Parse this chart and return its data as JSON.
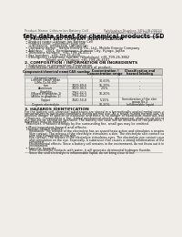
{
  "bg_color": "#f0ede8",
  "title": "Safety data sheet for chemical products (SDS)",
  "header_left": "Product Name: Lithium Ion Battery Cell",
  "header_right": "Publication Number: SDS-LIB-00010\nEstablished / Revision: Dec.7.2010",
  "section1_title": "1. PRODUCT AND COMPANY IDENTIFICATION",
  "section1_lines": [
    " • Product name: Lithium Ion Battery Cell",
    " • Product code: Cylindrical-type cell",
    "    (UR18650U, UR18650A, UR18650A)",
    " • Company name:   Sanyo Electric Co., Ltd., Mobile Energy Company",
    " • Address:   2001  Kamionazuru, Sumoto City, Hyogo, Japan",
    " • Telephone number:  +81-799-26-4111",
    " • Fax number:  +81-799-26-4120",
    " • Emergency telephone number (Weekdays) +81-799-26-3862",
    "                     (Night and holidays) +81-799-26-4101"
  ],
  "section2_title": "2. COMPOSITION / INFORMATION ON INGREDIENTS",
  "section2_intro": " • Substance or preparation: Preparation",
  "section2_sub": " • Information about the chemical nature of product:",
  "table_headers": [
    "Component/chemical name",
    "CAS number",
    "Concentration /\nConcentration range",
    "Classification and\nhazard labeling"
  ],
  "table_col2": "General name",
  "table_rows": [
    [
      "Lithium cobalt oxide\n(LiMn-Co-Ni-O4)",
      "-",
      "30-60%",
      "-"
    ],
    [
      "Iron",
      "7439-89-6",
      "15-25%",
      "-"
    ],
    [
      "Aluminum",
      "7429-90-5",
      "2-5%",
      "-"
    ],
    [
      "Graphite\n(Mixed in graphite-1)\n(Allfilo in graphite-1)",
      "7782-42-5\n7782-44-2",
      "10-20%",
      "-"
    ],
    [
      "Copper",
      "7440-50-8",
      "5-15%",
      "Sensitization of the skin\ngroup No.2"
    ],
    [
      "Organic electrolyte",
      "-",
      "10-20%",
      "Inflammable liquid"
    ]
  ],
  "section3_title": "3. HAZARDS IDENTIFICATION",
  "section3_lines": [
    "For the battery cell, chemical substances are stored in a hermetically sealed metal case, designed to withstand",
    "temperatures in particular-conditions during normal use. As a result, during normal use, there is no",
    "physical danger of ignition or explosion and there is no danger of hazardous materials leakage.",
    "  However, if exposed to a fire, added mechanical shocks, decomposed, short-circuit intentionally misuse,",
    "the gas inside cannot be operated. The battery cell case will be breached of fire-patterns, hazardous",
    "materials may be released.",
    "  Moreover, if heated strongly by the surrounding fire, small gas may be emitted."
  ],
  "section3_sub1": " • Most important hazard and effects:",
  "section3_human": "  Human health effects:",
  "section3_human_lines": [
    "    Inhalation: The release of the electrolyte has an anaesthesia action and stimulates a respiratory tract.",
    "    Skin contact: The release of the electrolyte stimulates a skin. The electrolyte skin contact causes a",
    "    sore and stimulation on the skin.",
    "    Eye contact: The release of the electrolyte stimulates eyes. The electrolyte eye contact causes a sore",
    "    and stimulation on the eye. Especially, a substance that causes a strong inflammation of the eye is",
    "    contained.",
    "    Environmental effects: Since a battery cell remains in the environment, do not throw out it into the",
    "    environment."
  ],
  "section3_specific": " • Specific hazards:",
  "section3_specific_lines": [
    "    If the electrolyte contacts with water, it will generate detrimental hydrogen fluoride.",
    "    Since the seal electrolyte is inflammable liquid, do not bring close to fire."
  ]
}
